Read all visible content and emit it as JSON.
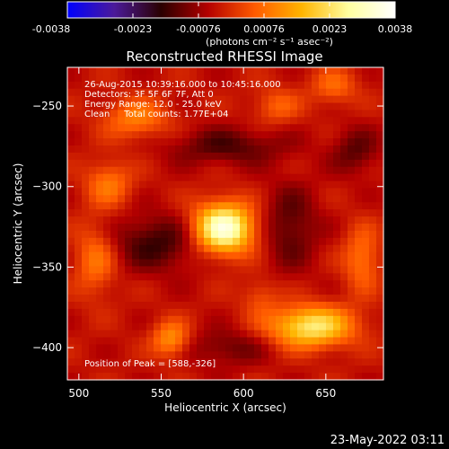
{
  "colors": {
    "background": "#000000",
    "text": "#ffffff",
    "colormap_stops": [
      "#0000ff",
      "#4b1a9a",
      "#2a0000",
      "#b40000",
      "#ff5a00",
      "#ffb400",
      "#ffffa0",
      "#ffffff"
    ]
  },
  "chart_data": {
    "type": "heatmap",
    "title": "Reconstructed RHESSI Image",
    "xlabel": "Heliocentric X (arcsec)",
    "ylabel": "Heliocentric Y (arcsec)",
    "xlim": [
      493,
      685
    ],
    "ylim": [
      -420,
      -226
    ],
    "xticks": [
      500,
      550,
      600,
      650
    ],
    "yticks": [
      -250,
      -300,
      -350,
      -400
    ],
    "colorbar": {
      "range": [
        -0.0038,
        0.0038
      ],
      "ticks": [
        "-0.0038",
        "-0.0023",
        "-0.00076",
        "0.00076",
        "0.0023",
        "0.0038"
      ],
      "unit_label": "(photons cm⁻² s⁻¹ asec⁻²)"
    },
    "annotations": [
      "26-Aug-2015 10:39:16.000 to 10:45:16.000",
      "Detectors: 3F 5F 6F 7F, Att 0",
      "Energy Range: 12.0 - 25.0 keV",
      "Clean     Total counts: 1.77E+04"
    ],
    "peak_label": "Position of Peak = [588,-326]",
    "peak": {
      "x": 588,
      "y": -326,
      "value": 0.0038
    },
    "sources": [
      {
        "x": 588,
        "y": -326,
        "sx": 13,
        "sy": 11,
        "amp": 0.0038
      },
      {
        "x": 641,
        "y": -387,
        "sx": 18,
        "sy": 9,
        "amp": 0.0028
      },
      {
        "x": 556,
        "y": -395,
        "sx": 8,
        "sy": 8,
        "amp": 0.0016
      },
      {
        "x": 535,
        "y": -258,
        "sx": 14,
        "sy": 9,
        "amp": 0.0013
      },
      {
        "x": 518,
        "y": -298,
        "sx": 10,
        "sy": 10,
        "amp": 0.0012
      },
      {
        "x": 510,
        "y": -345,
        "sx": 9,
        "sy": 16,
        "amp": 0.0012
      },
      {
        "x": 672,
        "y": -345,
        "sx": 8,
        "sy": 14,
        "amp": 0.0012
      },
      {
        "x": 655,
        "y": -238,
        "sx": 10,
        "sy": 8,
        "amp": 0.001
      },
      {
        "x": 620,
        "y": -250,
        "sx": 10,
        "sy": 8,
        "amp": 0.0009
      },
      {
        "x": 610,
        "y": -368,
        "sx": 8,
        "sy": 8,
        "amp": 0.0007
      },
      {
        "x": 548,
        "y": -335,
        "sx": 20,
        "sy": 12,
        "amp": -0.0012
      },
      {
        "x": 628,
        "y": -325,
        "sx": 12,
        "sy": 18,
        "amp": -0.001
      },
      {
        "x": 590,
        "y": -275,
        "sx": 25,
        "sy": 8,
        "amp": -0.001
      },
      {
        "x": 668,
        "y": -278,
        "sx": 10,
        "sy": 10,
        "amp": -0.0009
      },
      {
        "x": 590,
        "y": -400,
        "sx": 18,
        "sy": 8,
        "amp": -0.0008
      }
    ]
  },
  "footer": {
    "timestamp": "23-May-2022 03:11"
  }
}
